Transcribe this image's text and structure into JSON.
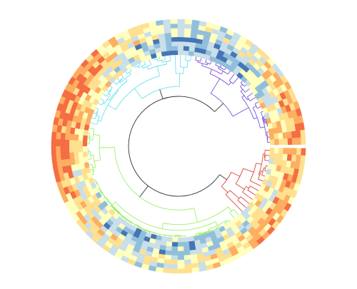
{
  "figure": {
    "kind": "circular dendrogram with heatmap ring",
    "clusters": [
      {
        "name": "cluster-purple",
        "color": "#7b52d6",
        "leaves": 24
      },
      {
        "name": "cluster-cyan",
        "color": "#6fe0ec",
        "leaves": 26
      },
      {
        "name": "cluster-green",
        "color": "#9ef06a",
        "leaves": 44
      },
      {
        "name": "cluster-red",
        "color": "#d9473e",
        "leaves": 14
      }
    ],
    "heatmap": {
      "rings": 8,
      "palette": [
        "#4575b4",
        "#91bfdb",
        "#c9dfe9",
        "#ffffbf",
        "#fee090",
        "#fdae61",
        "#f46d43"
      ]
    },
    "trunk_color": "#333333"
  }
}
